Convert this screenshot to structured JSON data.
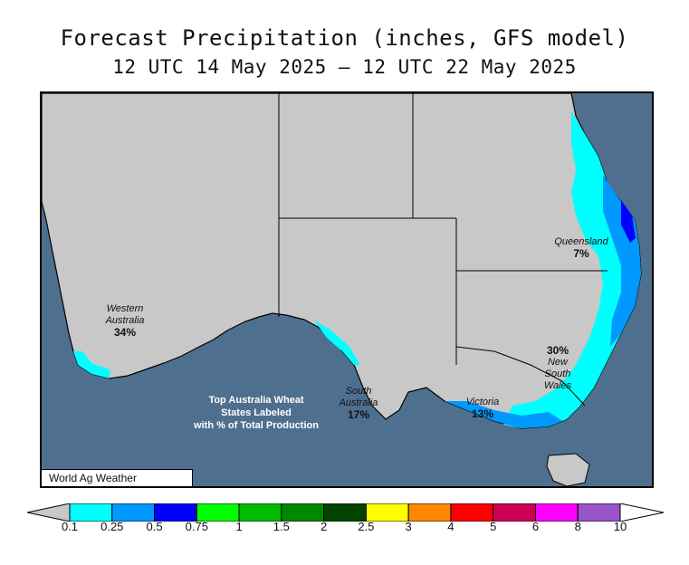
{
  "title": "Forecast Precipitation (inches, GFS model)",
  "subtitle": "12 UTC 14 May 2025 — 12 UTC 22 May 2025",
  "states": [
    {
      "name": "Western\nAustralia",
      "percent": "34%"
    },
    {
      "name": "South\nAustralia",
      "percent": "17%"
    },
    {
      "name": "Victoria",
      "percent": "13%"
    },
    {
      "name": "New\nSouth\nWales",
      "percent": "30%"
    },
    {
      "name": "Queensland",
      "percent": "7%"
    }
  ],
  "note": [
    "Top Australia Wheat",
    "States Labeled",
    "with % of Total Production"
  ],
  "credit": "World Ag Weather",
  "legend": {
    "labels": [
      "0.1",
      "0.25",
      "0.5",
      "0.75",
      "1",
      "1.5",
      "2",
      "2.5",
      "3",
      "4",
      "5",
      "6",
      "8",
      "10"
    ],
    "colors": [
      "#00ffff",
      "#0099ff",
      "#0000ff",
      "#00ff00",
      "#00bb00",
      "#008800",
      "#004400",
      "#ffff00",
      "#ff8800",
      "#ff0000",
      "#cc0055",
      "#ff00ff",
      "#9955cc"
    ]
  },
  "colors": {
    "ocean": "#4f6f8f",
    "land": "#c8c8c8"
  }
}
